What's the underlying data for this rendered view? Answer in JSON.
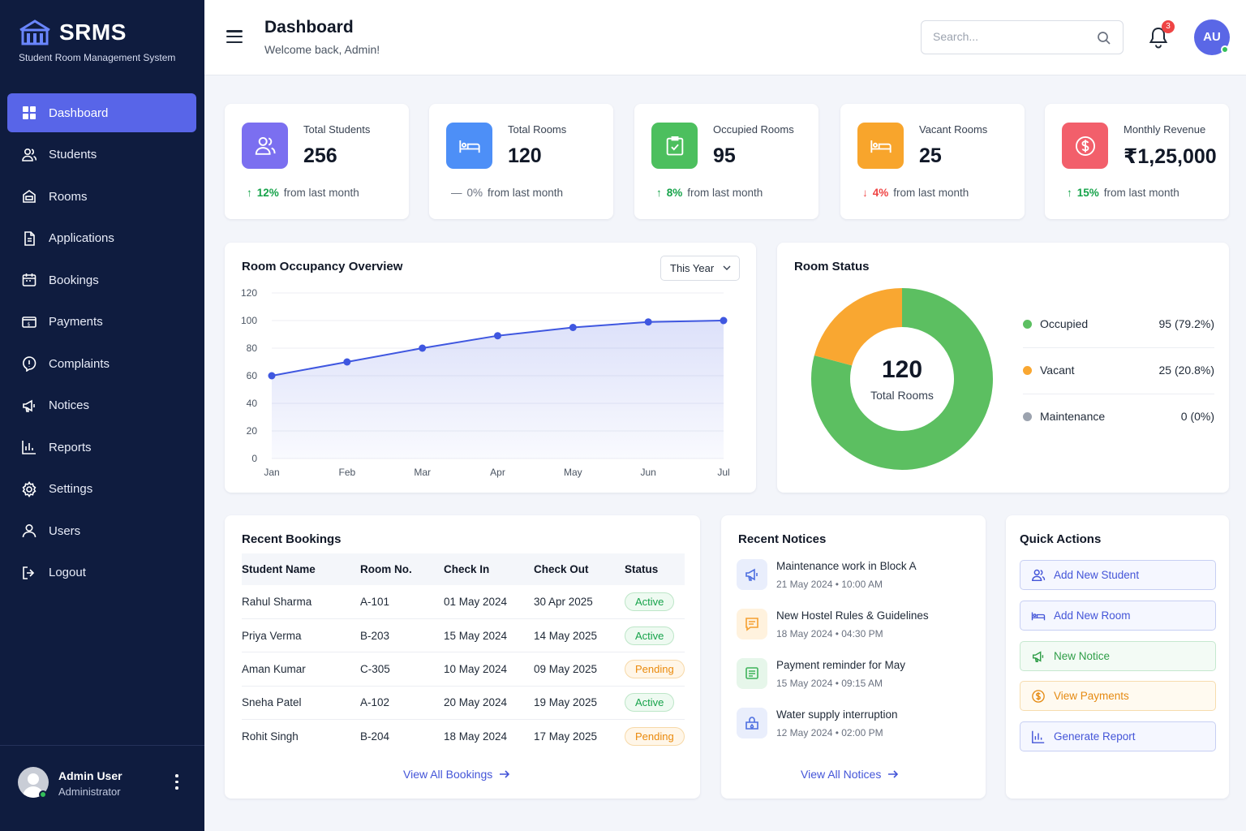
{
  "brand": {
    "title": "SRMS",
    "subtitle": "Student Room Management System"
  },
  "sidebar": {
    "items": [
      {
        "label": "Dashboard",
        "icon": "grid-icon",
        "active": true
      },
      {
        "label": "Students",
        "icon": "users-icon"
      },
      {
        "label": "Rooms",
        "icon": "bed-icon"
      },
      {
        "label": "Applications",
        "icon": "document-icon"
      },
      {
        "label": "Bookings",
        "icon": "calendar-icon"
      },
      {
        "label": "Payments",
        "icon": "payment-icon"
      },
      {
        "label": "Complaints",
        "icon": "alert-icon"
      },
      {
        "label": "Notices",
        "icon": "megaphone-icon"
      },
      {
        "label": "Reports",
        "icon": "bar-chart-icon"
      },
      {
        "label": "Settings",
        "icon": "gear-icon"
      },
      {
        "label": "Users",
        "icon": "user-icon"
      },
      {
        "label": "Logout",
        "icon": "logout-icon"
      }
    ],
    "footer": {
      "name": "Admin User",
      "role": "Administrator"
    }
  },
  "header": {
    "title": "Dashboard",
    "subtitle": "Welcome back, Admin!",
    "search_placeholder": "Search...",
    "notification_count": "3",
    "avatar_initials": "AU"
  },
  "stats": [
    {
      "label": "Total Students",
      "value": "256",
      "trend_pct": "12%",
      "trend_dir": "up",
      "trend_text": "from last month",
      "color": "#7b6ff0"
    },
    {
      "label": "Total Rooms",
      "value": "120",
      "trend_pct": "0%",
      "trend_dir": "flat",
      "trend_text": "from last month",
      "color": "#4d8ff7"
    },
    {
      "label": "Occupied Rooms",
      "value": "95",
      "trend_pct": "8%",
      "trend_dir": "up",
      "trend_text": "from last month",
      "color": "#4cbf5e"
    },
    {
      "label": "Vacant Rooms",
      "value": "25",
      "trend_pct": "4%",
      "trend_dir": "down",
      "trend_text": "from last month",
      "color": "#f8a52c"
    },
    {
      "label": "Monthly Revenue",
      "value": "₹1,25,000",
      "trend_pct": "15%",
      "trend_dir": "up",
      "trend_text": "from last month",
      "color": "#f25f6b"
    }
  ],
  "occupancy": {
    "title": "Room Occupancy Overview",
    "filter": "This Year"
  },
  "chart_data": {
    "type": "area",
    "categories": [
      "Jan",
      "Feb",
      "Mar",
      "Apr",
      "May",
      "Jun",
      "Jul"
    ],
    "series": [
      {
        "values": [
          60,
          70,
          80,
          89,
          95,
          99,
          100
        ]
      }
    ],
    "yticks": [
      "0",
      "20",
      "40",
      "60",
      "80",
      "100",
      "120"
    ],
    "ylim": [
      0,
      120
    ],
    "grid": true,
    "color": "#3f57e0"
  },
  "room_status": {
    "title": "Room Status",
    "total": "120",
    "total_label": "Total Rooms",
    "items": [
      {
        "name": "Occupied",
        "value": "95 (79.2%)",
        "count": 95,
        "color": "#5cbf61"
      },
      {
        "name": "Vacant",
        "value": "25 (20.8%)",
        "count": 25,
        "color": "#f9a731"
      },
      {
        "name": "Maintenance",
        "value": "0 (0%)",
        "count": 0,
        "color": "#9ca3af"
      }
    ]
  },
  "bookings": {
    "title": "Recent Bookings",
    "columns": [
      "Student Name",
      "Room No.",
      "Check In",
      "Check Out",
      "Status"
    ],
    "rows": [
      [
        "Rahul Sharma",
        "A-101",
        "01 May 2024",
        "30 Apr 2025",
        "Active"
      ],
      [
        "Priya Verma",
        "B-203",
        "15 May 2024",
        "14 May 2025",
        "Active"
      ],
      [
        "Aman Kumar",
        "C-305",
        "10 May 2024",
        "09 May 2025",
        "Pending"
      ],
      [
        "Sneha Patel",
        "A-102",
        "20 May 2024",
        "19 May 2025",
        "Active"
      ],
      [
        "Rohit Singh",
        "B-204",
        "18 May 2024",
        "17 May 2025",
        "Pending"
      ]
    ],
    "link": "View All Bookings"
  },
  "notices": {
    "title": "Recent Notices",
    "items": [
      {
        "title": "Maintenance work in Block A",
        "date": "21 May 2024 • 10:00 AM",
        "icon": "megaphone-icon",
        "color": "#4d6fe0"
      },
      {
        "title": "New Hostel Rules & Guidelines",
        "date": "18 May 2024 • 04:30 PM",
        "icon": "message-icon",
        "color": "#f5a030"
      },
      {
        "title": "Payment reminder for May",
        "date": "15 May 2024 • 09:15 AM",
        "icon": "list-icon",
        "color": "#3fb35a"
      },
      {
        "title": "Water supply interruption",
        "date": "12 May 2024 • 02:00 PM",
        "icon": "water-icon",
        "color": "#4d6fe0"
      }
    ],
    "link": "View All Notices"
  },
  "quick_actions": {
    "title": "Quick Actions",
    "items": [
      {
        "label": "Add New Student",
        "icon": "add-user-icon",
        "color": "#4455d8"
      },
      {
        "label": "Add New Room",
        "icon": "bed-icon",
        "color": "#4455d8"
      },
      {
        "label": "New Notice",
        "icon": "megaphone-icon",
        "color": "#2f9e48"
      },
      {
        "label": "View Payments",
        "icon": "dollar-icon",
        "color": "#e58a12"
      },
      {
        "label": "Generate Report",
        "icon": "bar-chart-icon",
        "color": "#4455d8"
      }
    ]
  }
}
